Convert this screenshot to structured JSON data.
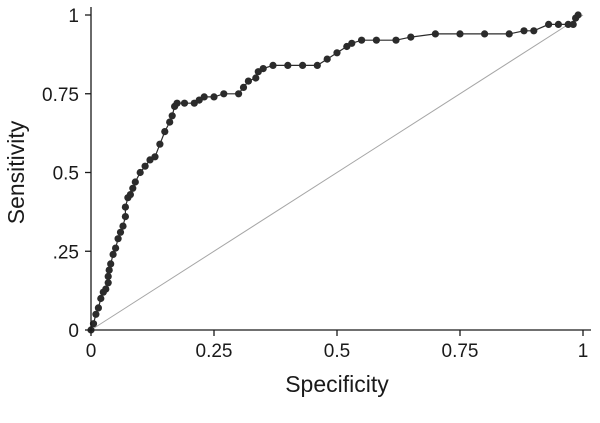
{
  "chart_data": {
    "type": "line",
    "title": "",
    "xlabel": "Specificity",
    "ylabel": "Sensitivity",
    "xlim": [
      0,
      1
    ],
    "ylim": [
      0,
      1
    ],
    "x_ticks": [
      {
        "value": 0,
        "label": "0"
      },
      {
        "value": 0.25,
        "label": "0.25"
      },
      {
        "value": 0.5,
        "label": "0.5"
      },
      {
        "value": 0.75,
        "label": "0.75"
      },
      {
        "value": 1,
        "label": "1"
      }
    ],
    "y_ticks": [
      {
        "value": 0,
        "label": "0"
      },
      {
        "value": 0.25,
        "label": ".25"
      },
      {
        "value": 0.5,
        "label": "0.5"
      },
      {
        "value": 0.75,
        "label": "0.75"
      },
      {
        "value": 1,
        "label": "1"
      }
    ],
    "grid": false,
    "legend": "none",
    "colors": {
      "curve": "#2b2b2b",
      "reference": "#a6a6a6",
      "axis": "#1a1a1a"
    },
    "series": [
      {
        "role": "roc-curve",
        "markers": true,
        "points": [
          [
            0,
            0
          ],
          [
            0.005,
            0.02
          ],
          [
            0.01,
            0.05
          ],
          [
            0.015,
            0.07
          ],
          [
            0.02,
            0.1
          ],
          [
            0.025,
            0.12
          ],
          [
            0.03,
            0.13
          ],
          [
            0.035,
            0.15
          ],
          [
            0.035,
            0.17
          ],
          [
            0.037,
            0.19
          ],
          [
            0.04,
            0.21
          ],
          [
            0.045,
            0.24
          ],
          [
            0.05,
            0.26
          ],
          [
            0.055,
            0.29
          ],
          [
            0.06,
            0.31
          ],
          [
            0.065,
            0.33
          ],
          [
            0.07,
            0.36
          ],
          [
            0.07,
            0.39
          ],
          [
            0.075,
            0.42
          ],
          [
            0.08,
            0.43
          ],
          [
            0.085,
            0.45
          ],
          [
            0.09,
            0.47
          ],
          [
            0.1,
            0.5
          ],
          [
            0.11,
            0.52
          ],
          [
            0.12,
            0.54
          ],
          [
            0.13,
            0.55
          ],
          [
            0.14,
            0.59
          ],
          [
            0.15,
            0.63
          ],
          [
            0.16,
            0.66
          ],
          [
            0.165,
            0.68
          ],
          [
            0.17,
            0.71
          ],
          [
            0.175,
            0.72
          ],
          [
            0.19,
            0.72
          ],
          [
            0.21,
            0.72
          ],
          [
            0.22,
            0.73
          ],
          [
            0.23,
            0.74
          ],
          [
            0.25,
            0.74
          ],
          [
            0.27,
            0.75
          ],
          [
            0.3,
            0.75
          ],
          [
            0.31,
            0.77
          ],
          [
            0.32,
            0.79
          ],
          [
            0.335,
            0.8
          ],
          [
            0.34,
            0.82
          ],
          [
            0.35,
            0.83
          ],
          [
            0.37,
            0.84
          ],
          [
            0.4,
            0.84
          ],
          [
            0.43,
            0.84
          ],
          [
            0.46,
            0.84
          ],
          [
            0.48,
            0.86
          ],
          [
            0.5,
            0.88
          ],
          [
            0.52,
            0.9
          ],
          [
            0.53,
            0.91
          ],
          [
            0.55,
            0.92
          ],
          [
            0.58,
            0.92
          ],
          [
            0.62,
            0.92
          ],
          [
            0.65,
            0.93
          ],
          [
            0.7,
            0.94
          ],
          [
            0.75,
            0.94
          ],
          [
            0.8,
            0.94
          ],
          [
            0.85,
            0.94
          ],
          [
            0.88,
            0.95
          ],
          [
            0.9,
            0.95
          ],
          [
            0.93,
            0.97
          ],
          [
            0.95,
            0.97
          ],
          [
            0.97,
            0.97
          ],
          [
            0.98,
            0.97
          ],
          [
            0.985,
            0.99
          ],
          [
            0.99,
            1
          ]
        ]
      },
      {
        "role": "reference-diagonal",
        "markers": false,
        "points": [
          [
            0,
            0
          ],
          [
            1,
            1
          ]
        ]
      }
    ]
  }
}
